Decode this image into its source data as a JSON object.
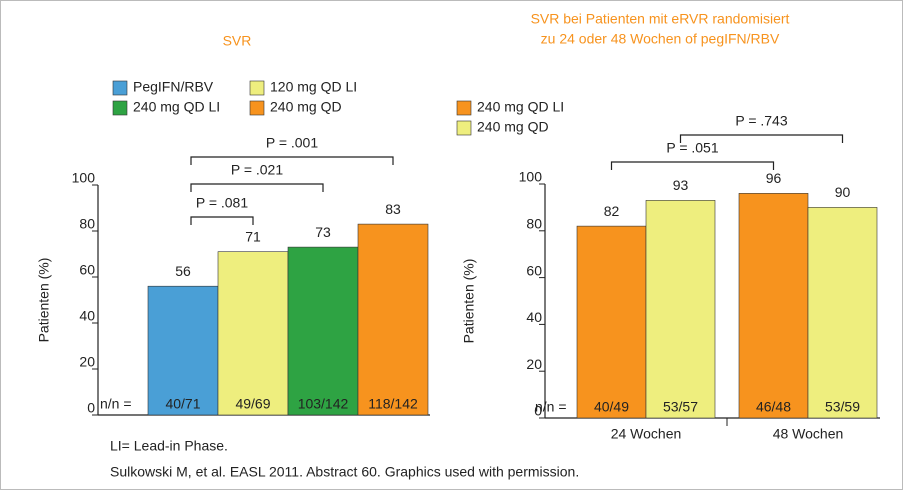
{
  "chart_data": [
    {
      "type": "bar",
      "title": "SVR",
      "ylabel": "Patienten (%)",
      "ylim": [
        0,
        100
      ],
      "yticks": [
        0,
        20,
        40,
        60,
        80,
        100
      ],
      "categories": [
        null
      ],
      "n_prefix": "n/n =",
      "series": [
        {
          "name": "PegIFN/RBV",
          "color": "#4a9fd6",
          "values": [
            56
          ],
          "n_labels": [
            "40/71"
          ]
        },
        {
          "name": "120 mg QD LI",
          "color": "#eeee7e",
          "values": [
            71
          ],
          "n_labels": [
            "49/69"
          ]
        },
        {
          "name": "240 mg QD LI",
          "color": "#2ea343",
          "values": [
            73
          ],
          "n_labels": [
            "103/142"
          ]
        },
        {
          "name": "240 mg QD",
          "color": "#f7931e",
          "values": [
            83
          ],
          "n_labels": [
            "118/142"
          ]
        }
      ],
      "comparisons": [
        {
          "label": "P = .081",
          "from": 0,
          "to": 1
        },
        {
          "label": "P = .021",
          "from": 0,
          "to": 2
        },
        {
          "label": "P = .001",
          "from": 0,
          "to": 3
        }
      ]
    },
    {
      "type": "bar",
      "title": [
        "SVR bei Patienten mit eRVR randomisiert",
        "zu 24 oder 48 Wochen of pegIFN/RBV"
      ],
      "ylabel": "Patienten (%)",
      "ylim": [
        0,
        100
      ],
      "yticks": [
        0,
        20,
        40,
        60,
        80,
        100
      ],
      "categories": [
        "24 Wochen",
        "48 Wochen"
      ],
      "n_prefix": "n/n =",
      "series": [
        {
          "name": "240 mg QD LI",
          "color": "#f7931e",
          "values": [
            82,
            96
          ],
          "n_labels": [
            "40/49",
            "46/48"
          ]
        },
        {
          "name": "240 mg QD",
          "color": "#eeee7e",
          "values": [
            93,
            90
          ],
          "n_labels": [
            "53/57",
            "53/59"
          ]
        }
      ],
      "comparisons": [
        {
          "label": "P = .051",
          "series": 0
        },
        {
          "label": "P = .743",
          "series": 1
        }
      ]
    }
  ],
  "footnotes": [
    "LI= Lead-in Phase.",
    "Sulkowski M, et al. EASL 2011. Abstract 60. Graphics used with permission."
  ]
}
